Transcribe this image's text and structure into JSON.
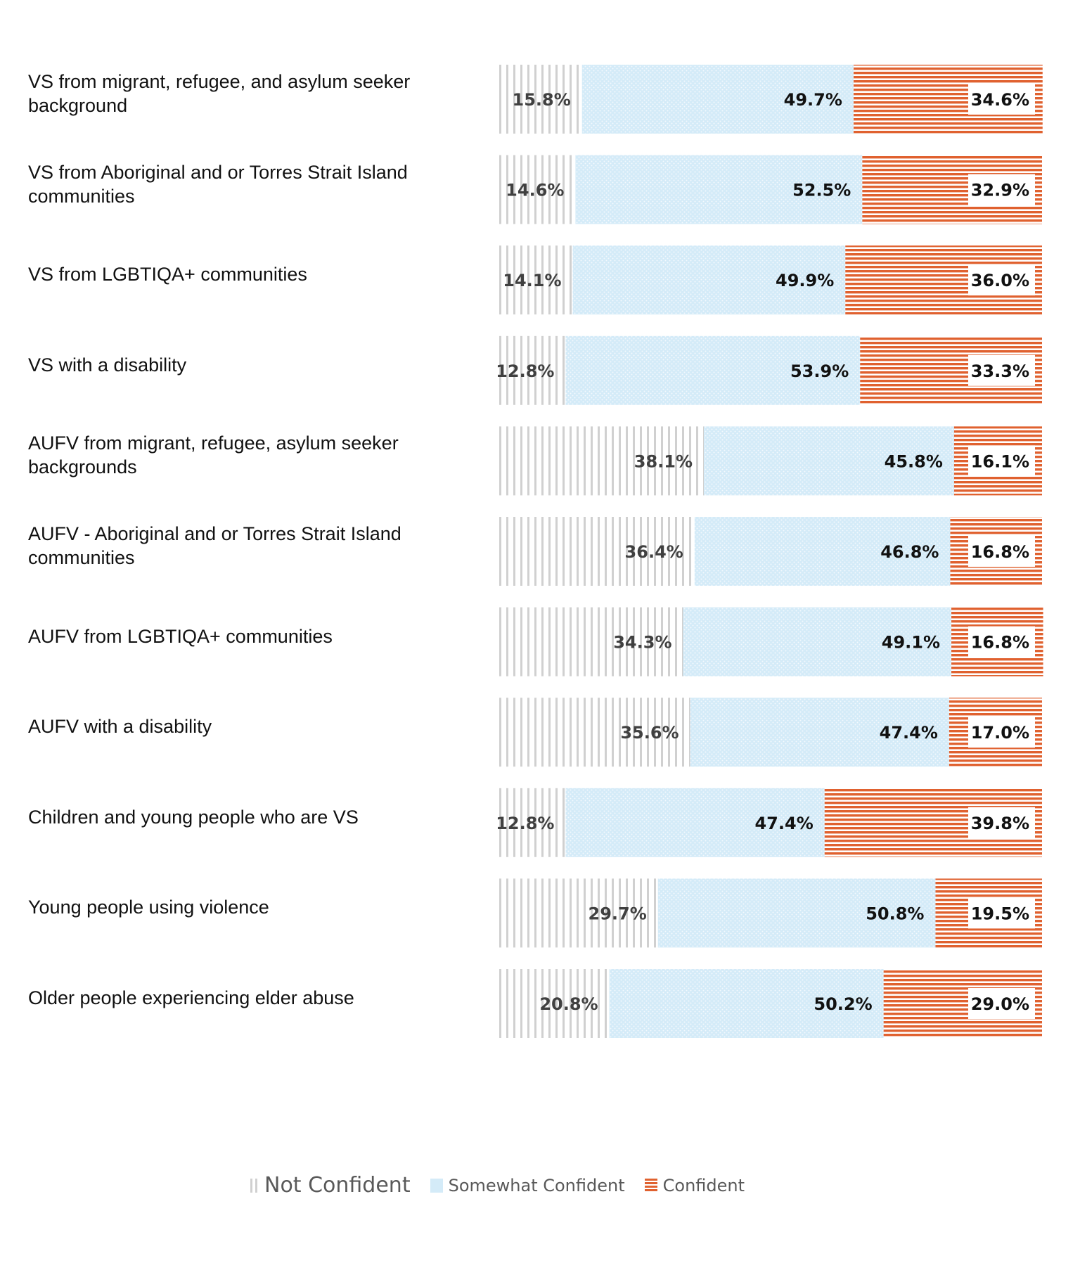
{
  "chart_data": {
    "type": "bar",
    "stacked": true,
    "orientation": "horizontal",
    "normalized_percent": true,
    "categories": [
      [
        "VS from migrant, refugee, and asylum seeker",
        "background"
      ],
      [
        "VS from Aboriginal and or Torres Strait Island",
        "communities"
      ],
      [
        "VS from LGBTIQA+ communities"
      ],
      [
        "VS with a disability"
      ],
      [
        "AUFV from migrant, refugee, asylum seeker",
        "backgrounds"
      ],
      [
        "AUFV - Aboriginal and or Torres Strait Island",
        "communities"
      ],
      [
        "AUFV from LGBTIQA+ communities"
      ],
      [
        "AUFV with a disability"
      ],
      [
        "Children and young people who are VS"
      ],
      [
        "Young people using violence"
      ],
      [
        "Older people experiencing elder abuse"
      ]
    ],
    "series": [
      {
        "name": "Not Confident",
        "color": "#d0d0d0",
        "pattern": "vertical-lines",
        "values": [
          15.8,
          14.6,
          14.1,
          12.8,
          38.1,
          36.4,
          34.3,
          35.6,
          12.8,
          29.7,
          20.8
        ],
        "labels": [
          "15.8%",
          "14.6%",
          "14.1%",
          "12.8%",
          "38.1%",
          "36.4%",
          "34.3%",
          "35.6%",
          "12.8%",
          "29.7%",
          "20.8%"
        ]
      },
      {
        "name": "Somewhat Confident",
        "color": "#d4ebf8",
        "pattern": "dots",
        "values": [
          49.7,
          52.5,
          49.9,
          53.9,
          45.8,
          46.8,
          49.1,
          47.4,
          47.4,
          50.8,
          50.2
        ],
        "labels": [
          "49.7%",
          "52.5%",
          "49.9%",
          "53.9%",
          "45.8%",
          "46.8%",
          "49.1%",
          "47.4%",
          "47.4%",
          "50.8%",
          "50.2%"
        ]
      },
      {
        "name": "Confident",
        "color": "#e0612f",
        "pattern": "horizontal-lines",
        "values": [
          34.6,
          32.9,
          36.0,
          33.3,
          16.1,
          16.8,
          16.8,
          17.0,
          39.8,
          19.5,
          29.0
        ],
        "labels": [
          "34.6%",
          "32.9%",
          "36.0%",
          "33.3%",
          "16.1%",
          "16.8%",
          "16.8%",
          "17.0%",
          "39.8%",
          "19.5%",
          "29.0%"
        ]
      }
    ],
    "xlim": [
      0,
      100
    ],
    "grid": false,
    "legend_position": "bottom"
  }
}
